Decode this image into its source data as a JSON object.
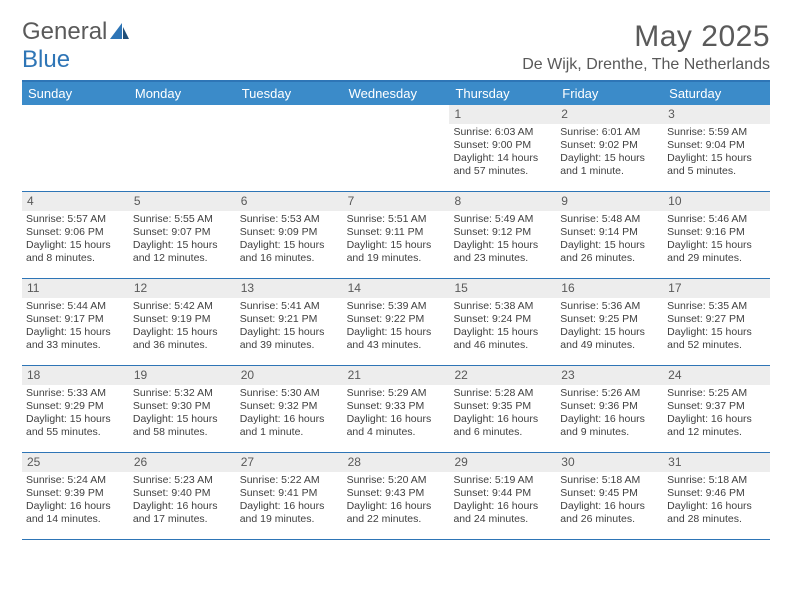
{
  "logo": {
    "word1": "General",
    "word2": "Blue"
  },
  "title": "May 2025",
  "location": "De Wijk, Drenthe, The Netherlands",
  "colors": {
    "accent": "#2e75b6",
    "header_bg": "#3b8bc9",
    "daynum_bg": "#ededed",
    "text": "#404040",
    "title_text": "#5a5a5a"
  },
  "day_headers": [
    "Sunday",
    "Monday",
    "Tuesday",
    "Wednesday",
    "Thursday",
    "Friday",
    "Saturday"
  ],
  "weeks": [
    [
      {
        "n": "",
        "sr": "",
        "ss": "",
        "dl": ""
      },
      {
        "n": "",
        "sr": "",
        "ss": "",
        "dl": ""
      },
      {
        "n": "",
        "sr": "",
        "ss": "",
        "dl": ""
      },
      {
        "n": "",
        "sr": "",
        "ss": "",
        "dl": ""
      },
      {
        "n": "1",
        "sr": "Sunrise: 6:03 AM",
        "ss": "Sunset: 9:00 PM",
        "dl": "Daylight: 14 hours and 57 minutes."
      },
      {
        "n": "2",
        "sr": "Sunrise: 6:01 AM",
        "ss": "Sunset: 9:02 PM",
        "dl": "Daylight: 15 hours and 1 minute."
      },
      {
        "n": "3",
        "sr": "Sunrise: 5:59 AM",
        "ss": "Sunset: 9:04 PM",
        "dl": "Daylight: 15 hours and 5 minutes."
      }
    ],
    [
      {
        "n": "4",
        "sr": "Sunrise: 5:57 AM",
        "ss": "Sunset: 9:06 PM",
        "dl": "Daylight: 15 hours and 8 minutes."
      },
      {
        "n": "5",
        "sr": "Sunrise: 5:55 AM",
        "ss": "Sunset: 9:07 PM",
        "dl": "Daylight: 15 hours and 12 minutes."
      },
      {
        "n": "6",
        "sr": "Sunrise: 5:53 AM",
        "ss": "Sunset: 9:09 PM",
        "dl": "Daylight: 15 hours and 16 minutes."
      },
      {
        "n": "7",
        "sr": "Sunrise: 5:51 AM",
        "ss": "Sunset: 9:11 PM",
        "dl": "Daylight: 15 hours and 19 minutes."
      },
      {
        "n": "8",
        "sr": "Sunrise: 5:49 AM",
        "ss": "Sunset: 9:12 PM",
        "dl": "Daylight: 15 hours and 23 minutes."
      },
      {
        "n": "9",
        "sr": "Sunrise: 5:48 AM",
        "ss": "Sunset: 9:14 PM",
        "dl": "Daylight: 15 hours and 26 minutes."
      },
      {
        "n": "10",
        "sr": "Sunrise: 5:46 AM",
        "ss": "Sunset: 9:16 PM",
        "dl": "Daylight: 15 hours and 29 minutes."
      }
    ],
    [
      {
        "n": "11",
        "sr": "Sunrise: 5:44 AM",
        "ss": "Sunset: 9:17 PM",
        "dl": "Daylight: 15 hours and 33 minutes."
      },
      {
        "n": "12",
        "sr": "Sunrise: 5:42 AM",
        "ss": "Sunset: 9:19 PM",
        "dl": "Daylight: 15 hours and 36 minutes."
      },
      {
        "n": "13",
        "sr": "Sunrise: 5:41 AM",
        "ss": "Sunset: 9:21 PM",
        "dl": "Daylight: 15 hours and 39 minutes."
      },
      {
        "n": "14",
        "sr": "Sunrise: 5:39 AM",
        "ss": "Sunset: 9:22 PM",
        "dl": "Daylight: 15 hours and 43 minutes."
      },
      {
        "n": "15",
        "sr": "Sunrise: 5:38 AM",
        "ss": "Sunset: 9:24 PM",
        "dl": "Daylight: 15 hours and 46 minutes."
      },
      {
        "n": "16",
        "sr": "Sunrise: 5:36 AM",
        "ss": "Sunset: 9:25 PM",
        "dl": "Daylight: 15 hours and 49 minutes."
      },
      {
        "n": "17",
        "sr": "Sunrise: 5:35 AM",
        "ss": "Sunset: 9:27 PM",
        "dl": "Daylight: 15 hours and 52 minutes."
      }
    ],
    [
      {
        "n": "18",
        "sr": "Sunrise: 5:33 AM",
        "ss": "Sunset: 9:29 PM",
        "dl": "Daylight: 15 hours and 55 minutes."
      },
      {
        "n": "19",
        "sr": "Sunrise: 5:32 AM",
        "ss": "Sunset: 9:30 PM",
        "dl": "Daylight: 15 hours and 58 minutes."
      },
      {
        "n": "20",
        "sr": "Sunrise: 5:30 AM",
        "ss": "Sunset: 9:32 PM",
        "dl": "Daylight: 16 hours and 1 minute."
      },
      {
        "n": "21",
        "sr": "Sunrise: 5:29 AM",
        "ss": "Sunset: 9:33 PM",
        "dl": "Daylight: 16 hours and 4 minutes."
      },
      {
        "n": "22",
        "sr": "Sunrise: 5:28 AM",
        "ss": "Sunset: 9:35 PM",
        "dl": "Daylight: 16 hours and 6 minutes."
      },
      {
        "n": "23",
        "sr": "Sunrise: 5:26 AM",
        "ss": "Sunset: 9:36 PM",
        "dl": "Daylight: 16 hours and 9 minutes."
      },
      {
        "n": "24",
        "sr": "Sunrise: 5:25 AM",
        "ss": "Sunset: 9:37 PM",
        "dl": "Daylight: 16 hours and 12 minutes."
      }
    ],
    [
      {
        "n": "25",
        "sr": "Sunrise: 5:24 AM",
        "ss": "Sunset: 9:39 PM",
        "dl": "Daylight: 16 hours and 14 minutes."
      },
      {
        "n": "26",
        "sr": "Sunrise: 5:23 AM",
        "ss": "Sunset: 9:40 PM",
        "dl": "Daylight: 16 hours and 17 minutes."
      },
      {
        "n": "27",
        "sr": "Sunrise: 5:22 AM",
        "ss": "Sunset: 9:41 PM",
        "dl": "Daylight: 16 hours and 19 minutes."
      },
      {
        "n": "28",
        "sr": "Sunrise: 5:20 AM",
        "ss": "Sunset: 9:43 PM",
        "dl": "Daylight: 16 hours and 22 minutes."
      },
      {
        "n": "29",
        "sr": "Sunrise: 5:19 AM",
        "ss": "Sunset: 9:44 PM",
        "dl": "Daylight: 16 hours and 24 minutes."
      },
      {
        "n": "30",
        "sr": "Sunrise: 5:18 AM",
        "ss": "Sunset: 9:45 PM",
        "dl": "Daylight: 16 hours and 26 minutes."
      },
      {
        "n": "31",
        "sr": "Sunrise: 5:18 AM",
        "ss": "Sunset: 9:46 PM",
        "dl": "Daylight: 16 hours and 28 minutes."
      }
    ]
  ]
}
